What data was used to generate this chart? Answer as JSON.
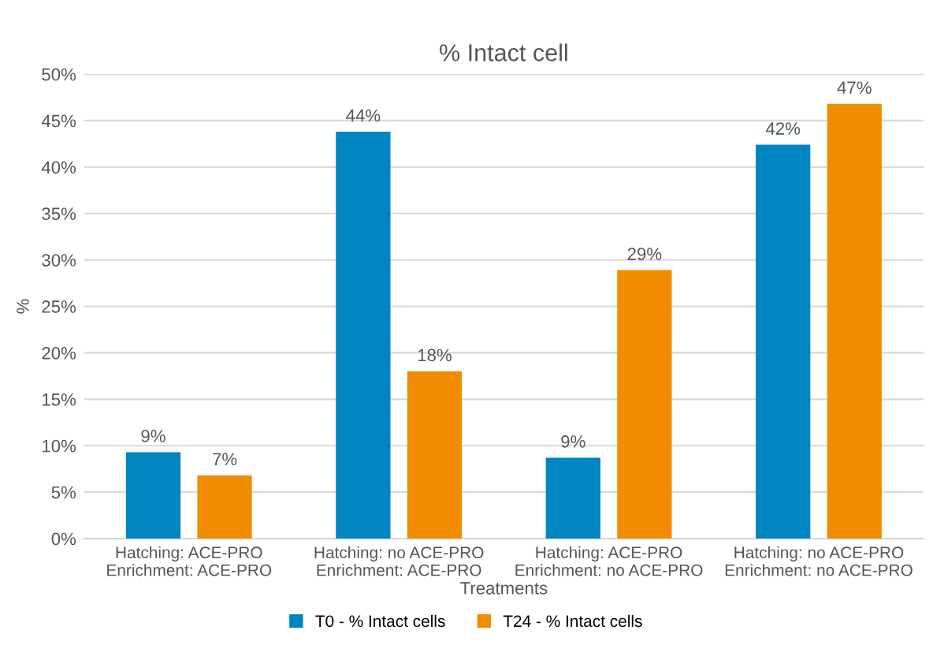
{
  "chart_data": {
    "type": "bar",
    "title": "% Intact cell",
    "xlabel": "Treatments",
    "ylabel": "%",
    "categories": [
      "Hatching: ACE-PRO\nEnrichment: ACE-PRO",
      "Hatching: no ACE-PRO\nEnrichment: ACE-PRO",
      "Hatching: ACE-PRO\nEnrichment: no ACE-PRO",
      "Hatching: no ACE-PRO\nEnrichment: no ACE-PRO"
    ],
    "series": [
      {
        "name": "T0 - % Intact cells",
        "color": "#0085c3",
        "values": [
          9.3,
          43.8,
          8.7,
          42.4
        ],
        "value_labels": [
          "9%",
          "44%",
          "9%",
          "42%"
        ]
      },
      {
        "name": "T24 - % Intact cells",
        "color": "#f18c00",
        "values": [
          6.8,
          18.0,
          28.9,
          46.8
        ],
        "value_labels": [
          "7%",
          "18%",
          "29%",
          "47%"
        ]
      }
    ],
    "ylim": [
      0,
      50
    ],
    "yticks": [
      {
        "value": 0,
        "label": "0%"
      },
      {
        "value": 5,
        "label": "5%"
      },
      {
        "value": 10,
        "label": "10%"
      },
      {
        "value": 15,
        "label": "15%"
      },
      {
        "value": 20,
        "label": "20%"
      },
      {
        "value": 25,
        "label": "25%"
      },
      {
        "value": 30,
        "label": "30%"
      },
      {
        "value": 35,
        "label": "35%"
      },
      {
        "value": 40,
        "label": "40%"
      },
      {
        "value": 45,
        "label": "45%"
      },
      {
        "value": 50,
        "label": "50%"
      }
    ],
    "grid": "y",
    "legend": "bottom"
  }
}
